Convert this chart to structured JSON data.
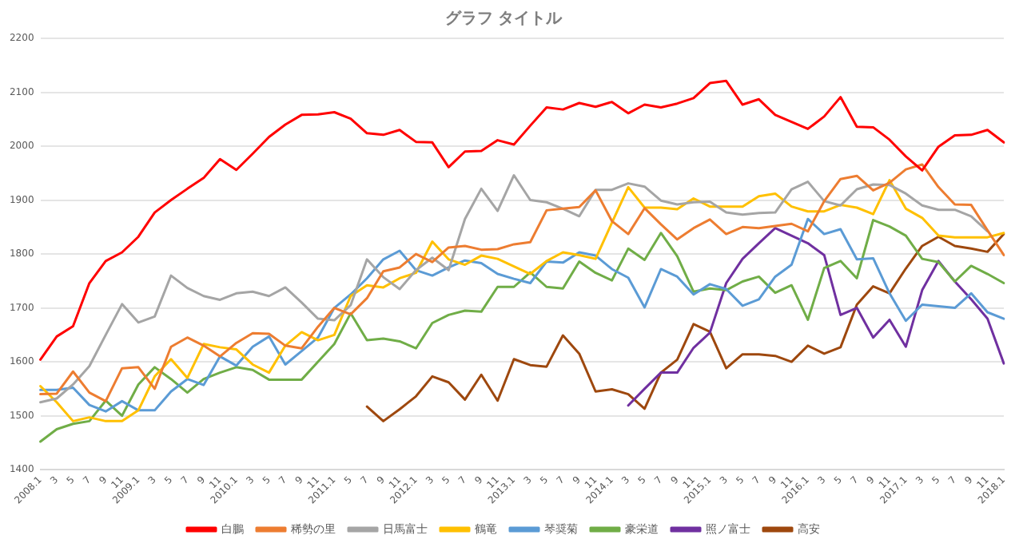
{
  "chart_data": {
    "type": "line",
    "title": "グラフ タイトル",
    "categories": [
      "2008.1",
      "3",
      "5",
      "7",
      "9",
      "11",
      "2009.1",
      "3",
      "5",
      "7",
      "9",
      "11",
      "2010.1",
      "3",
      "5",
      "7",
      "9",
      "11",
      "2011.1",
      "5",
      "7",
      "9",
      "11",
      "2012.1",
      "3",
      "5",
      "7",
      "9",
      "11",
      "2013.1",
      "3",
      "5",
      "7",
      "9",
      "11",
      "2014.1",
      "3",
      "5",
      "7",
      "9",
      "11",
      "2015.1",
      "3",
      "5",
      "7",
      "9",
      "11",
      "2016.1",
      "3",
      "5",
      "7",
      "9",
      "11",
      "2017.1",
      "3",
      "5",
      "7",
      "9",
      "11",
      "2018.1"
    ],
    "series": [
      {
        "name": "白鵬",
        "color": "#ff0000",
        "values": [
          1604,
          1647,
          1666,
          1746,
          1787,
          1803,
          1832,
          1877,
          1900,
          1921,
          1941,
          1976,
          1956,
          1986,
          2017,
          2040,
          2058,
          2059,
          2063,
          2051,
          2024,
          2021,
          2030,
          2008,
          2007,
          1961,
          1990,
          1991,
          2011,
          2003,
          2038,
          2072,
          2068,
          2080,
          2073,
          2082,
          2061,
          2077,
          2072,
          2079,
          2089,
          2117,
          2121,
          2077,
          2087,
          2058,
          2045,
          2032,
          2055,
          2091,
          2036,
          2035,
          2012,
          1981,
          1955,
          1999,
          2020,
          2021,
          2030,
          2007
        ]
      },
      {
        "name": "稀勢の里",
        "color": "#ed7d31",
        "values": [
          1540,
          1541,
          1582,
          1543,
          1527,
          1588,
          1590,
          1550,
          1628,
          1645,
          1630,
          1610,
          1635,
          1653,
          1652,
          1630,
          1625,
          1665,
          1700,
          1688,
          1718,
          1768,
          1775,
          1800,
          1785,
          1812,
          1815,
          1808,
          1809,
          1818,
          1822,
          1881,
          1884,
          1887,
          1918,
          1861,
          1837,
          1885,
          1855,
          1827,
          1848,
          1864,
          1837,
          1850,
          1848,
          1852,
          1856,
          1842,
          1898,
          1939,
          1945,
          1918,
          1932,
          1957,
          1966,
          1924,
          1892,
          1891,
          1844,
          1798
        ]
      },
      {
        "name": "日馬富士",
        "color": "#a5a5a5",
        "values": [
          1525,
          1532,
          1558,
          1592,
          1650,
          1707,
          1673,
          1684,
          1760,
          1737,
          1722,
          1715,
          1727,
          1730,
          1722,
          1738,
          1710,
          1680,
          1677,
          1705,
          1790,
          1757,
          1735,
          1770,
          1793,
          1770,
          1865,
          1921,
          1880,
          1946,
          1900,
          1896,
          1884,
          1870,
          1919,
          1919,
          1931,
          1925,
          1899,
          1892,
          1896,
          1897,
          1877,
          1873,
          1876,
          1877,
          1920,
          1934,
          1898,
          1890,
          1920,
          1929,
          1928,
          1912,
          1890,
          1882,
          1882,
          1870,
          1842,
          null
        ]
      },
      {
        "name": "鶴竜",
        "color": "#ffc000",
        "values": [
          1555,
          1525,
          1490,
          1497,
          1490,
          1490,
          1510,
          1573,
          1605,
          1570,
          1633,
          1627,
          1623,
          1595,
          1580,
          1630,
          1655,
          1640,
          1650,
          1722,
          1742,
          1738,
          1755,
          1765,
          1823,
          1790,
          1780,
          1797,
          1791,
          1777,
          1763,
          1787,
          1803,
          1798,
          1791,
          1858,
          1924,
          1886,
          1886,
          1883,
          1903,
          1888,
          1888,
          1888,
          1907,
          1912,
          1888,
          1879,
          1879,
          1891,
          1886,
          1874,
          1937,
          1884,
          1867,
          1834,
          1831,
          1831,
          1831,
          1839
        ]
      },
      {
        "name": "琴奨菊",
        "color": "#5b9bd5",
        "values": [
          1548,
          1548,
          1552,
          1520,
          1508,
          1527,
          1510,
          1510,
          1545,
          1568,
          1557,
          1610,
          1593,
          1628,
          1647,
          1595,
          1620,
          1645,
          1700,
          1725,
          1755,
          1790,
          1806,
          1770,
          1760,
          1775,
          1788,
          1783,
          1763,
          1754,
          1746,
          1786,
          1784,
          1803,
          1797,
          1772,
          1756,
          1701,
          1772,
          1758,
          1725,
          1744,
          1735,
          1704,
          1716,
          1758,
          1780,
          1865,
          1837,
          1846,
          1790,
          1792,
          1727,
          1676,
          1706,
          1703,
          1700,
          1727,
          1692,
          1680
        ]
      },
      {
        "name": "豪栄道",
        "color": "#70ad47",
        "values": [
          1452,
          1475,
          1485,
          1490,
          1528,
          1500,
          1558,
          1590,
          1568,
          1543,
          1568,
          1580,
          1590,
          1585,
          1567,
          1567,
          1567,
          1600,
          1633,
          1690,
          1640,
          1643,
          1638,
          1625,
          1672,
          1687,
          1695,
          1693,
          1739,
          1739,
          1766,
          1739,
          1736,
          1786,
          1765,
          1751,
          1810,
          1789,
          1839,
          1796,
          1730,
          1736,
          1733,
          1749,
          1758,
          1728,
          1742,
          1678,
          1774,
          1787,
          1755,
          1863,
          1851,
          1834,
          1791,
          1785,
          1749,
          1778,
          1763,
          1746
        ]
      },
      {
        "name": "照ノ富士",
        "color": "#7030a0",
        "values": [
          null,
          null,
          null,
          null,
          null,
          null,
          null,
          null,
          null,
          null,
          null,
          null,
          null,
          null,
          null,
          null,
          null,
          null,
          null,
          null,
          null,
          null,
          null,
          null,
          null,
          null,
          null,
          null,
          null,
          null,
          null,
          null,
          null,
          null,
          null,
          null,
          1519,
          1550,
          1580,
          1580,
          1626,
          1654,
          1746,
          1791,
          1820,
          1848,
          1834,
          1820,
          1798,
          1687,
          1700,
          1645,
          1678,
          1628,
          1733,
          1787,
          1749,
          1716,
          1680,
          1597
        ]
      },
      {
        "name": "高安",
        "color": "#9e480e",
        "values": [
          null,
          null,
          null,
          null,
          null,
          null,
          null,
          null,
          null,
          null,
          null,
          null,
          null,
          null,
          null,
          null,
          null,
          null,
          null,
          null,
          1517,
          1490,
          1512,
          1536,
          1573,
          1562,
          1530,
          1576,
          1528,
          1605,
          1594,
          1591,
          1649,
          1615,
          1545,
          1549,
          1540,
          1513,
          1580,
          1604,
          1670,
          1656,
          1588,
          1614,
          1614,
          1611,
          1600,
          1630,
          1615,
          1627,
          1706,
          1740,
          1727,
          1773,
          1815,
          1832,
          1815,
          1810,
          1804,
          1837
        ]
      }
    ],
    "ylim": [
      1400,
      2200
    ],
    "yticks": [
      1400,
      1500,
      1600,
      1700,
      1800,
      1900,
      2000,
      2100,
      2200
    ],
    "grid": "y",
    "legend": "bottom",
    "marker": "none",
    "line_style": "solid"
  }
}
